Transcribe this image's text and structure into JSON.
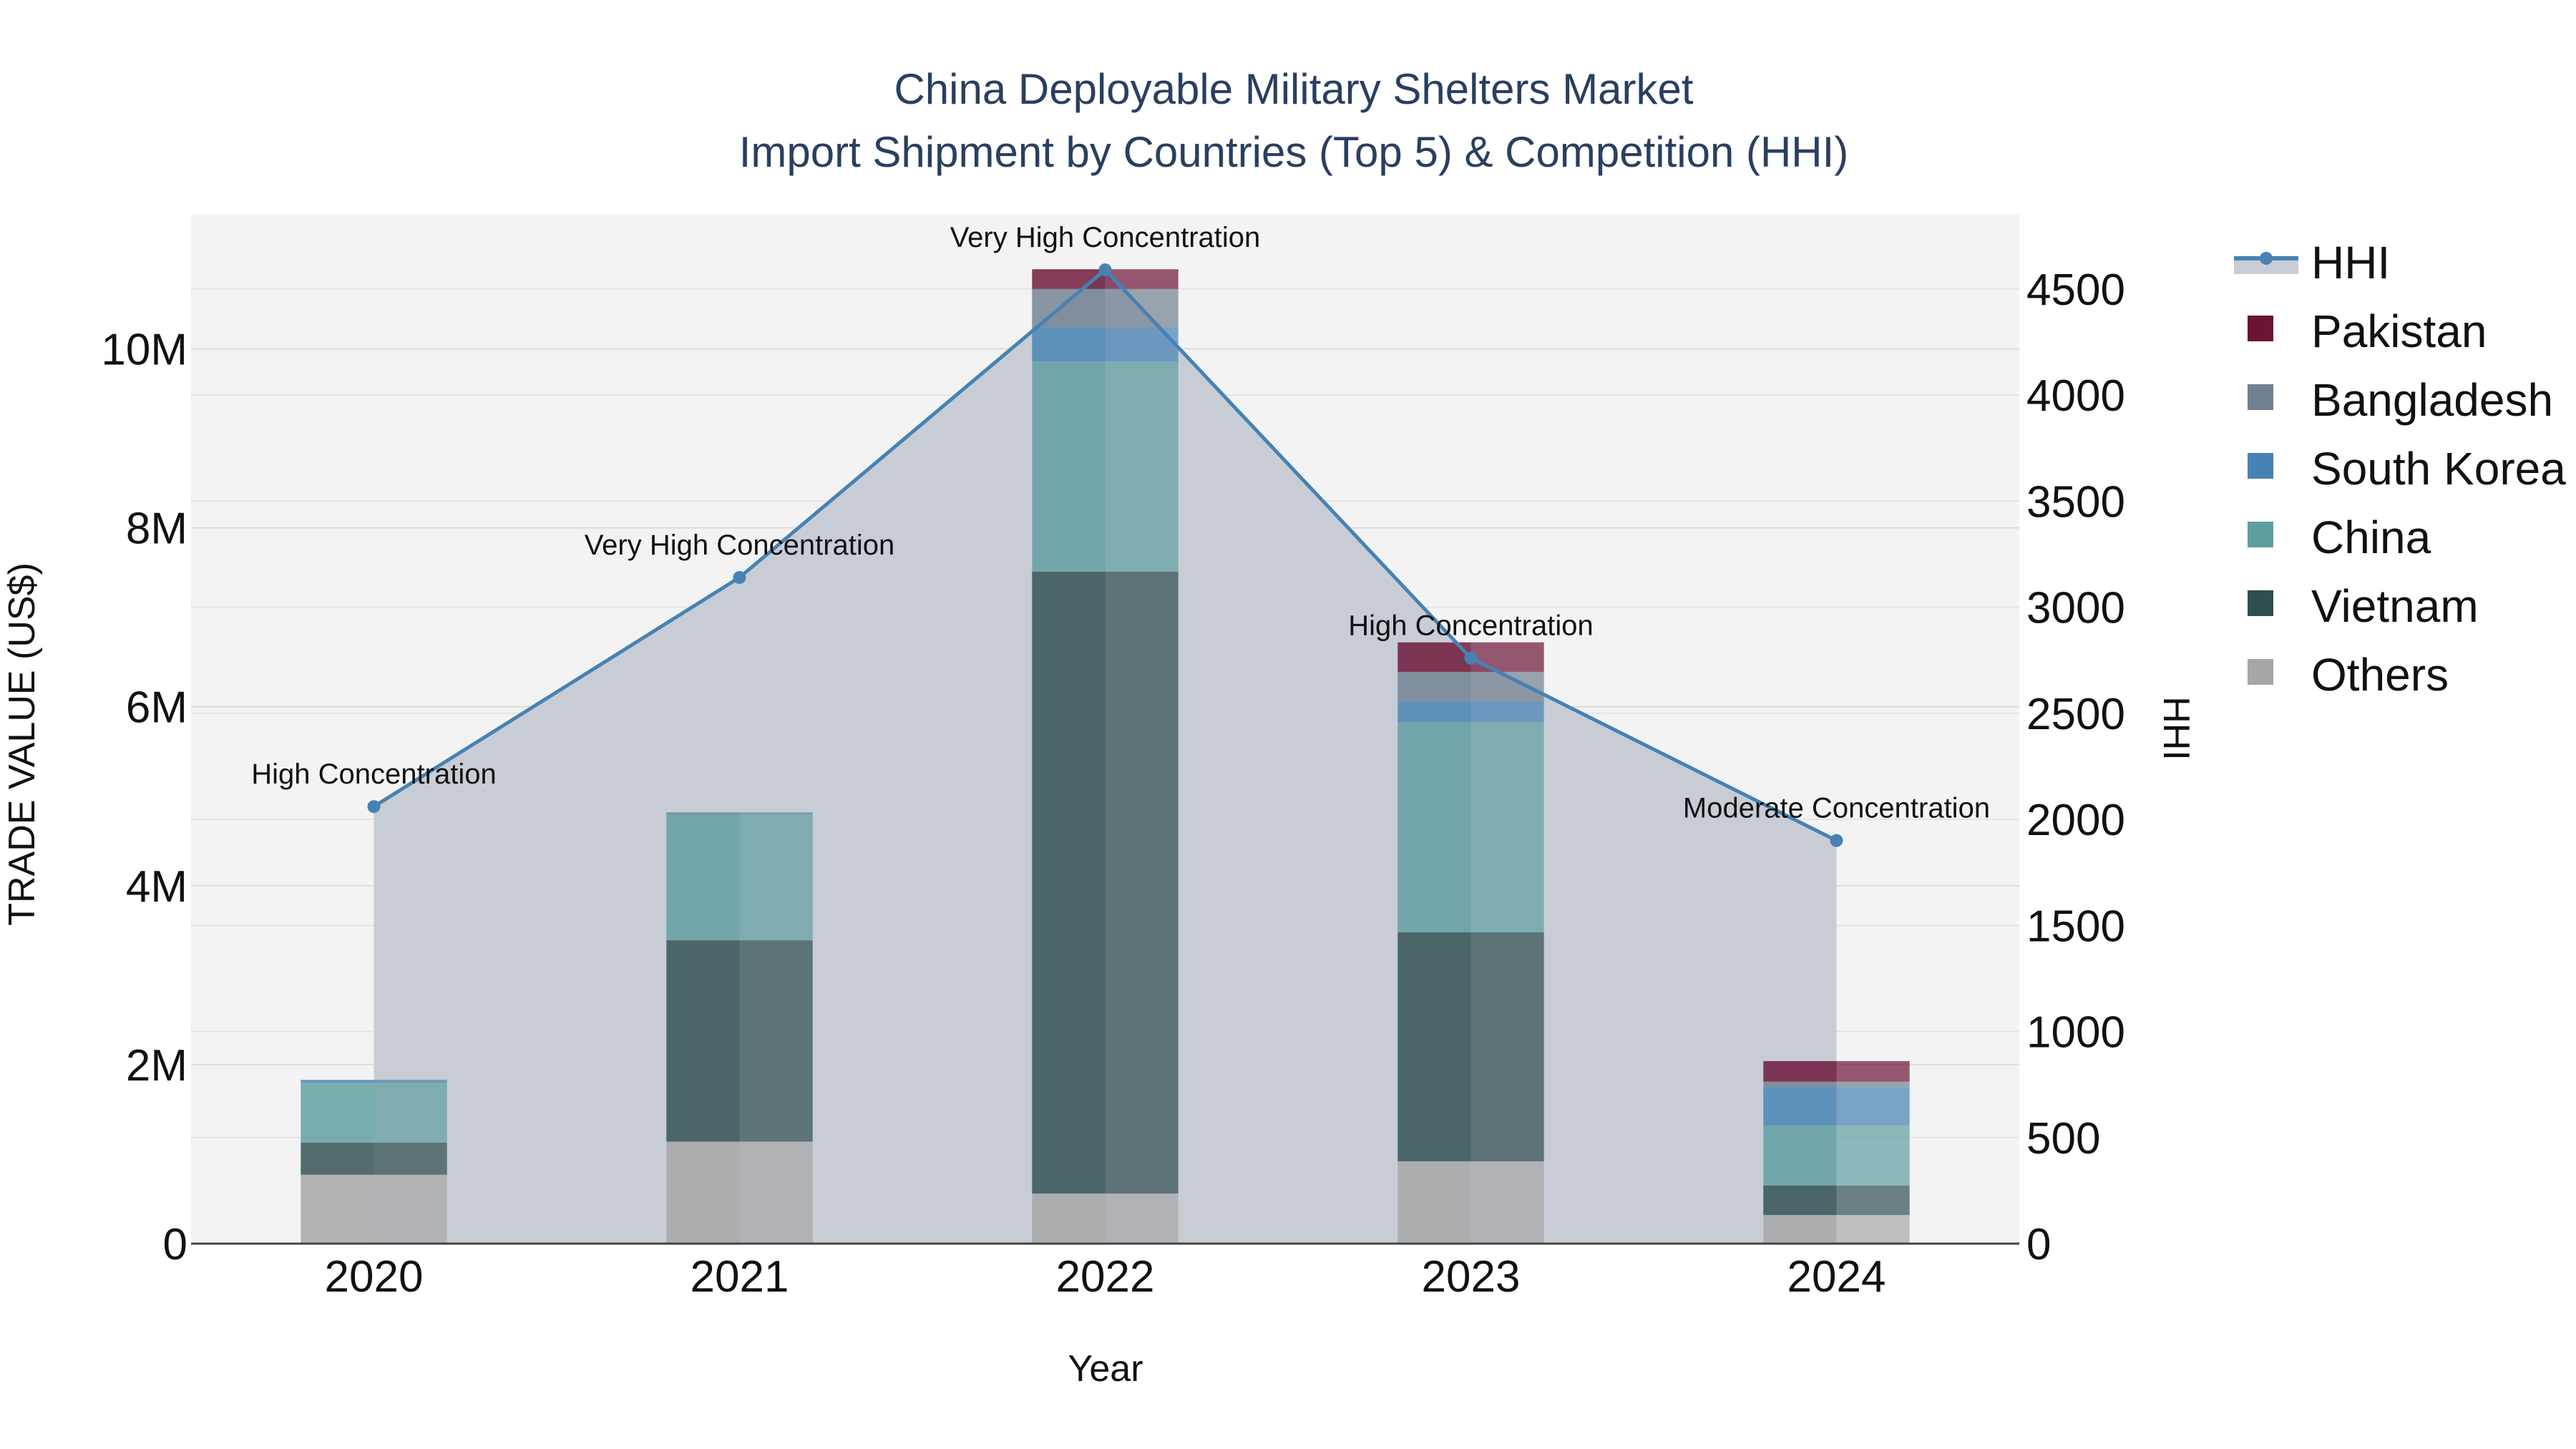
{
  "chart_data": {
    "type": "bar",
    "title_line1": "China Deployable Military Shelters Market",
    "title_line2": "Import Shipment by Countries (Top 5) & Competition (HHI)",
    "xlabel": "Year",
    "ylabel": "TRADE VALUE (US$)",
    "y2label": "HHI",
    "categories": [
      "2020",
      "2021",
      "2022",
      "2023",
      "2024"
    ],
    "ylim": [
      0,
      11500000
    ],
    "y_ticks": [
      0,
      2000000,
      4000000,
      6000000,
      8000000,
      10000000
    ],
    "y_tick_labels": [
      "0",
      "2M",
      "4M",
      "6M",
      "8M",
      "10M"
    ],
    "y2lim": [
      0,
      4850
    ],
    "y2_ticks": [
      0,
      500,
      1000,
      1500,
      2000,
      2500,
      3000,
      3500,
      4000,
      4500
    ],
    "y2_tick_labels": [
      "0",
      "500",
      "1000",
      "1500",
      "2000",
      "2500",
      "3000",
      "3500",
      "4000",
      "4500"
    ],
    "series": [
      {
        "name": "Others",
        "color": "#a6a6a6",
        "values": [
          770000,
          1140000,
          560000,
          920000,
          320000
        ]
      },
      {
        "name": "Vietnam",
        "color": "#2f4f4f",
        "values": [
          360000,
          2250000,
          6950000,
          2560000,
          330000
        ]
      },
      {
        "name": "China",
        "color": "#5f9ea0",
        "values": [
          670000,
          1410000,
          2350000,
          2350000,
          670000
        ]
      },
      {
        "name": "South Korea",
        "color": "#4682b4",
        "values": [
          30000,
          10000,
          380000,
          230000,
          430000
        ]
      },
      {
        "name": "Bangladesh",
        "color": "#708090",
        "values": [
          0,
          10000,
          430000,
          330000,
          60000
        ]
      },
      {
        "name": "Pakistan",
        "color": "#6b1436",
        "values": [
          0,
          0,
          220000,
          330000,
          230000
        ]
      }
    ],
    "hhi": {
      "name": "HHI",
      "color": "#4682b4",
      "values": [
        2060,
        3140,
        4590,
        2760,
        1900
      ],
      "labels": [
        "High Concentration",
        "Very High Concentration",
        "Very High Concentration",
        "High Concentration",
        "Moderate Concentration"
      ]
    },
    "legend": [
      "HHI",
      "Pakistan",
      "Bangladesh",
      "South Korea",
      "China",
      "Vietnam",
      "Others"
    ],
    "legend_position": "right"
  }
}
